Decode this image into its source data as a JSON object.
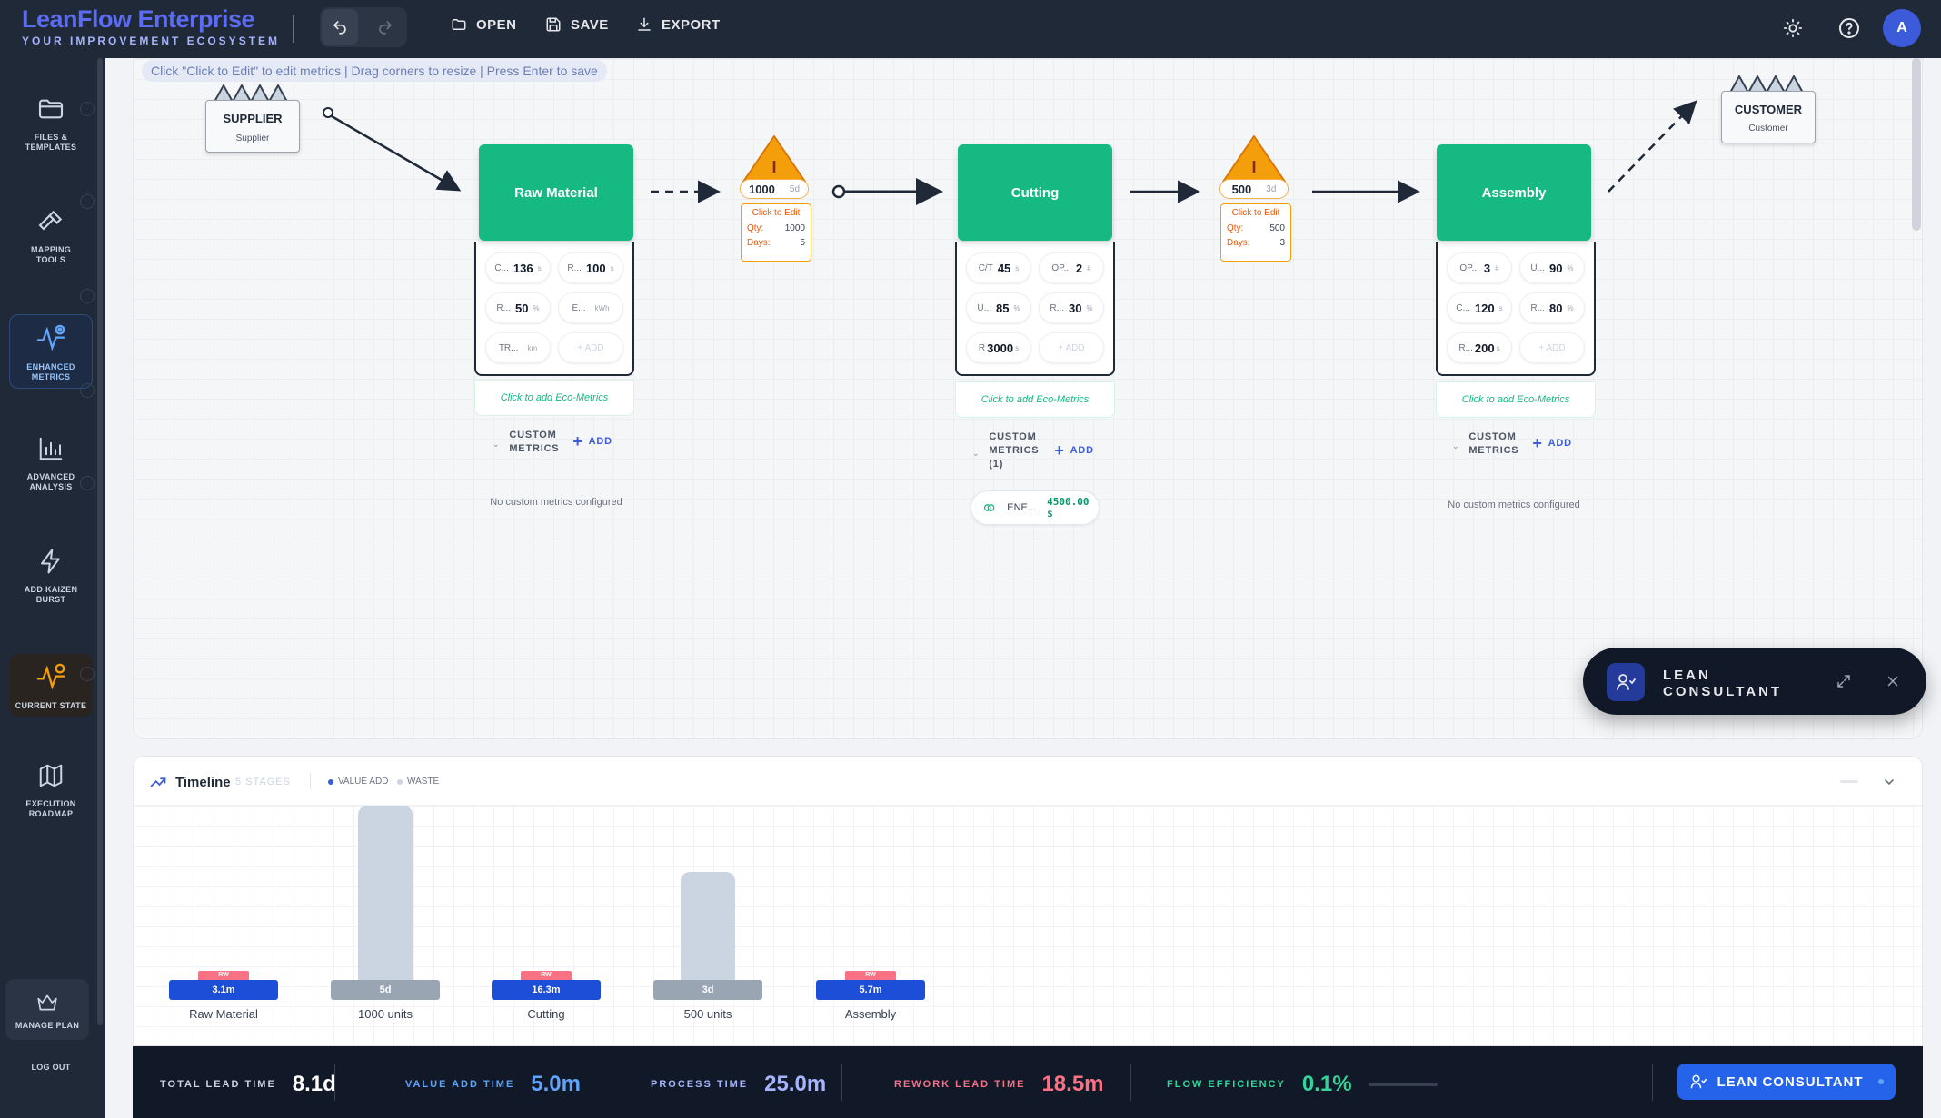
{
  "app": {
    "title": "LeanFlow Enterprise",
    "subtitle": "YOUR IMPROVEMENT ECOSYSTEM"
  },
  "toolbar": {
    "open": "OPEN",
    "save": "SAVE",
    "export": "EXPORT",
    "avatar": "A"
  },
  "sidebar": {
    "items": [
      {
        "label": "FILES & TEMPLATES"
      },
      {
        "label": "MAPPING TOOLS"
      },
      {
        "label": "ENHANCED METRICS"
      },
      {
        "label": "ADVANCED ANALYSIS"
      },
      {
        "label": "ADD KAIZEN BURST"
      },
      {
        "label": "CURRENT STATE"
      },
      {
        "label": "EXECUTION ROADMAP"
      }
    ],
    "manage_plan": "MANAGE PLAN",
    "logout": "LOG OUT"
  },
  "canvas": {
    "hint": "Click \"Click to Edit\" to edit metrics | Drag corners to resize | Press Enter to save",
    "supplier": {
      "name": "SUPPLIER",
      "sub": "Supplier"
    },
    "customer": {
      "name": "CUSTOMER",
      "sub": "Customer"
    },
    "processes": [
      {
        "name": "Raw Material",
        "metrics": [
          {
            "label": "C...",
            "value": "136",
            "unit": "s"
          },
          {
            "label": "R...",
            "value": "100",
            "unit": "s"
          },
          {
            "label": "R...",
            "value": "50",
            "unit": "%"
          },
          {
            "label": "E...",
            "value": "",
            "unit": "kWh"
          },
          {
            "label": "TR...",
            "value": "",
            "unit": "km"
          },
          {
            "label": "+ ADD",
            "value": "",
            "unit": ""
          }
        ],
        "eco": "Click to add Eco-Metrics",
        "custom_label": "CUSTOM METRICS",
        "custom_add": "ADD",
        "no_custom": "No custom metrics configured"
      },
      {
        "name": "Cutting",
        "metrics": [
          {
            "label": "C/T",
            "value": "45",
            "unit": "s"
          },
          {
            "label": "OP...",
            "value": "2",
            "unit": "#"
          },
          {
            "label": "U...",
            "value": "85",
            "unit": "%"
          },
          {
            "label": "R...",
            "value": "30",
            "unit": "%"
          },
          {
            "label": "R",
            "value": "3000",
            "unit": "s"
          },
          {
            "label": "+ ADD",
            "value": "",
            "unit": ""
          }
        ],
        "eco": "Click to add Eco-Metrics",
        "custom_label": "CUSTOM METRICS (1)",
        "custom_add": "ADD",
        "eco_chip": {
          "label": "ENE...",
          "value": "4500.00 $"
        }
      },
      {
        "name": "Assembly",
        "metrics": [
          {
            "label": "OP...",
            "value": "3",
            "unit": "#"
          },
          {
            "label": "U...",
            "value": "90",
            "unit": "%"
          },
          {
            "label": "C...",
            "value": "120",
            "unit": "s"
          },
          {
            "label": "R...",
            "value": "80",
            "unit": "%"
          },
          {
            "label": "R...",
            "value": "200",
            "unit": "s"
          },
          {
            "label": "+ ADD",
            "value": "",
            "unit": ""
          }
        ],
        "eco": "Click to add Eco-Metrics",
        "custom_label": "CUSTOM METRICS",
        "custom_add": "ADD",
        "no_custom": "No custom metrics configured"
      }
    ],
    "inventories": [
      {
        "qty": "1000",
        "days": "5d",
        "edit": "Click to Edit",
        "qty_label": "Qty:",
        "qty_val": "1000",
        "days_label": "Days:",
        "days_val": "5"
      },
      {
        "qty": "500",
        "days": "3d",
        "edit": "Click to Edit",
        "qty_label": "Qty:",
        "qty_val": "500",
        "days_label": "Days:",
        "days_val": "3"
      }
    ]
  },
  "lean_panel": {
    "title": "LEAN CONSULTANT"
  },
  "timeline": {
    "title": "Timeline",
    "stages": "5 STAGES",
    "legend_value_add": "VALUE ADD",
    "legend_waste": "WASTE",
    "items": [
      {
        "label": "Raw Material",
        "tag": "3.1m",
        "rw": "RW",
        "type": "process"
      },
      {
        "label": "1000 units",
        "tag": "5d",
        "type": "inventory"
      },
      {
        "label": "Cutting",
        "tag": "16.3m",
        "rw": "RW",
        "type": "process"
      },
      {
        "label": "500 units",
        "tag": "3d",
        "type": "inventory"
      },
      {
        "label": "Assembly",
        "tag": "5.7m",
        "rw": "RW",
        "type": "process"
      }
    ]
  },
  "footer": {
    "total_lead_time": {
      "label": "TOTAL LEAD TIME",
      "value": "8.1d"
    },
    "value_add_time": {
      "label": "VALUE ADD TIME",
      "value": "5.0m"
    },
    "process_time": {
      "label": "PROCESS TIME",
      "value": "25.0m"
    },
    "rework_lead_time": {
      "label": "REWORK LEAD TIME",
      "value": "18.5m"
    },
    "flow_efficiency": {
      "label": "FLOW EFFICIENCY",
      "value": "0.1%"
    },
    "lean_button": "LEAN CONSULTANT"
  },
  "colors": {
    "accent": "#2563eb",
    "process": "#16b981",
    "inventory": "#f59e0b",
    "rework": "#f87185"
  }
}
